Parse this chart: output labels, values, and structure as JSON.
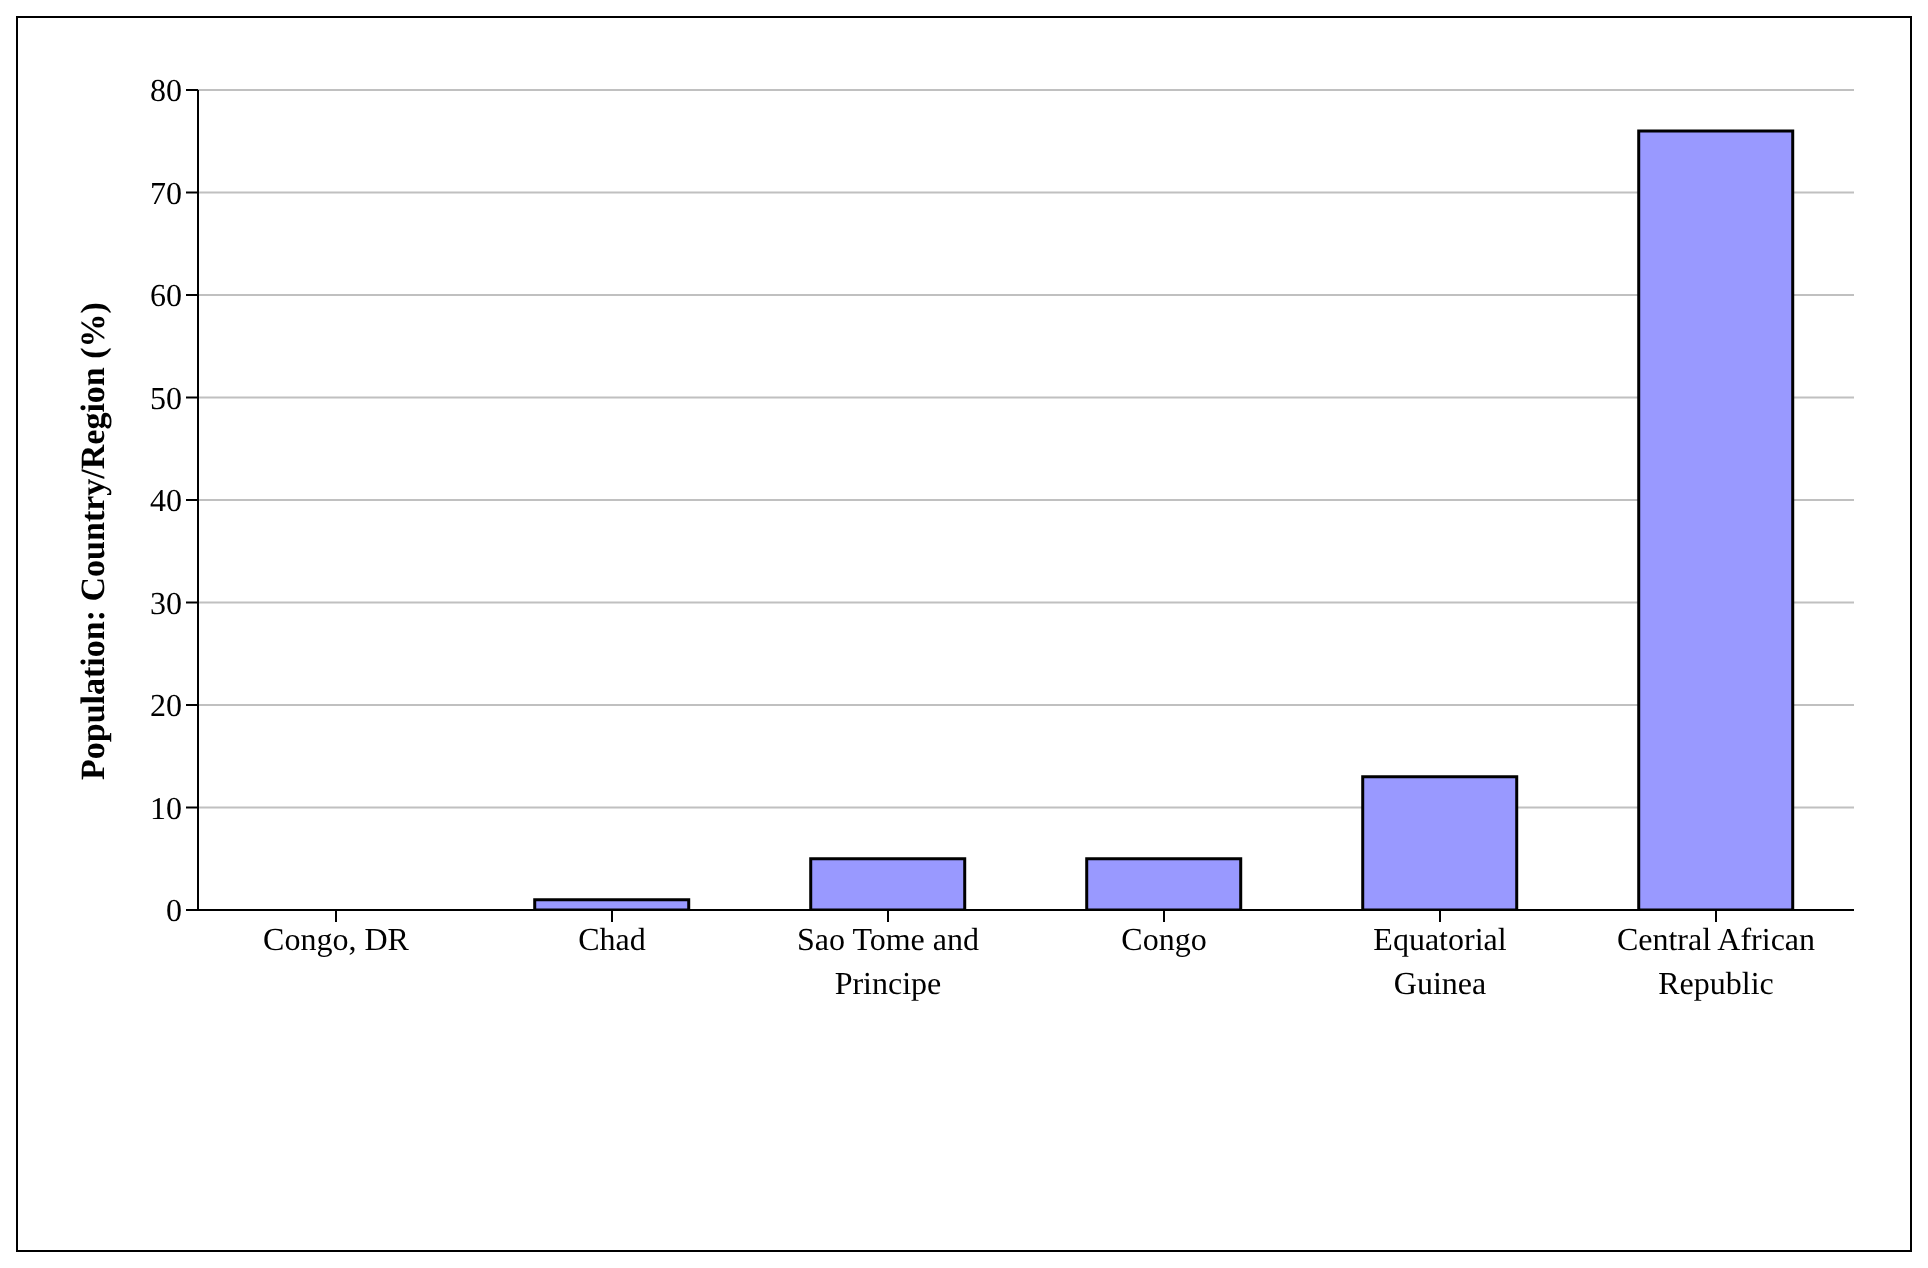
{
  "chart_data": {
    "type": "bar",
    "ylabel": "Population: Country/Region (%)",
    "categories": [
      "Congo, DR",
      "Chad",
      "Sao Tome and Principe",
      "Congo",
      "Equatorial Guinea",
      "Central African Republic"
    ],
    "values": [
      0,
      1,
      5,
      5,
      13,
      76
    ],
    "color": "#9999ff",
    "ylim": [
      0,
      80
    ],
    "yticks": [
      0,
      10,
      20,
      30,
      40,
      50,
      60,
      70,
      80
    ],
    "grid": "y",
    "legend": false
  }
}
